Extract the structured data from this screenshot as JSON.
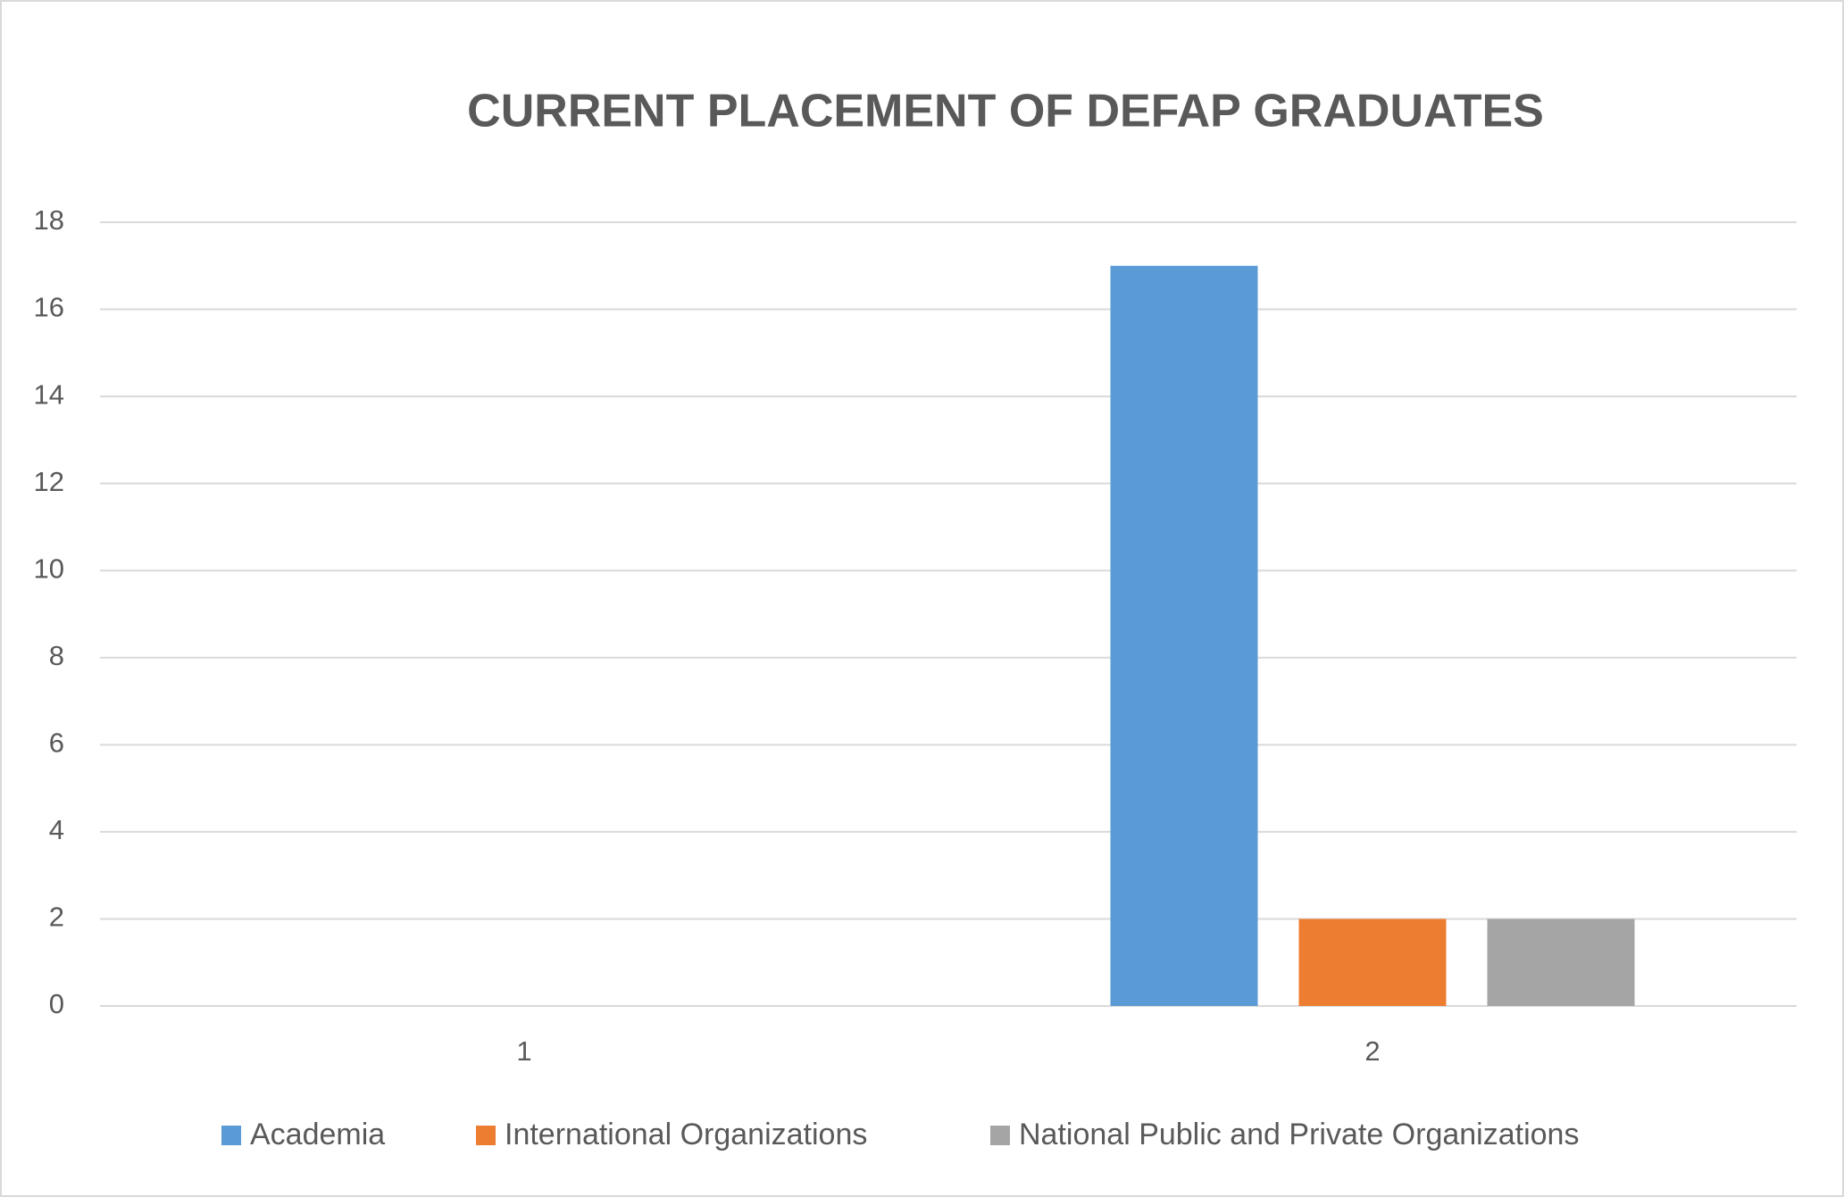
{
  "chart_data": {
    "type": "bar",
    "title": "CURRENT PLACEMENT OF DEFAP GRADUATES",
    "categories": [
      "1",
      "2"
    ],
    "series": [
      {
        "name": "Academia",
        "color": "#5b9bd5",
        "values": [
          null,
          17
        ]
      },
      {
        "name": "International Organizations",
        "color": "#ed7d31",
        "values": [
          null,
          2
        ]
      },
      {
        "name": "National Public and Private Organizations",
        "color": "#a5a5a5",
        "values": [
          null,
          2
        ]
      }
    ],
    "ylim": [
      0,
      18
    ],
    "yticks": [
      0,
      2,
      4,
      6,
      8,
      10,
      12,
      14,
      16,
      18
    ],
    "grid": true,
    "legend": "bottom"
  }
}
